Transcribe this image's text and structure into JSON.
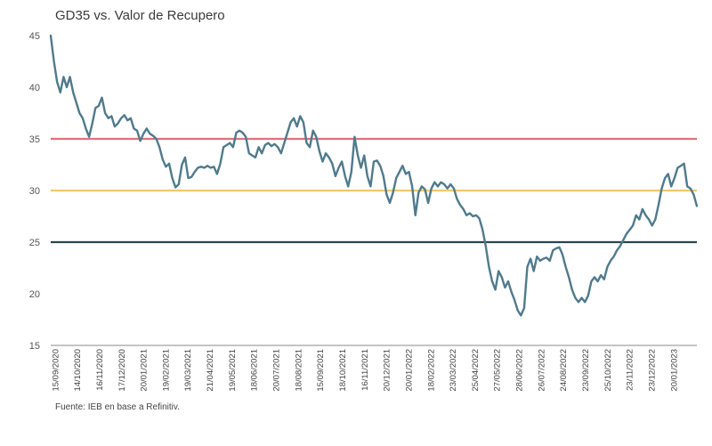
{
  "chart_data": {
    "type": "line",
    "title": "GD35 vs. Valor de Recupero",
    "xlabel": "",
    "ylabel": "",
    "ylim": [
      15,
      45
    ],
    "yticks": [
      15,
      20,
      25,
      30,
      35,
      40,
      45
    ],
    "x_tick_labels": [
      "15/09/2020",
      "14/10/2020",
      "16/11/2020",
      "17/12/2020",
      "20/01/2021",
      "19/02/2021",
      "19/03/2021",
      "21/04/2021",
      "19/05/2021",
      "18/06/2021",
      "20/07/2021",
      "18/08/2021",
      "15/09/2021",
      "18/10/2021",
      "16/11/2021",
      "20/12/2021",
      "20/01/2022",
      "18/02/2022",
      "23/03/2022",
      "25/04/2022",
      "27/05/2022",
      "28/06/2022",
      "26/07/2022",
      "24/08/2022",
      "23/09/2022",
      "25/10/2022",
      "23/11/2022",
      "23/12/2022",
      "20/01/2023"
    ],
    "series": [
      {
        "name": "GD35",
        "color": "#4f7a8c",
        "values": [
          45,
          42.5,
          40.5,
          39.5,
          41,
          40,
          41,
          39.5,
          38.5,
          37.5,
          37,
          36,
          35.2,
          36.5,
          38,
          38.2,
          39,
          37.5,
          37,
          37.2,
          36.2,
          36.5,
          37,
          37.3,
          36.8,
          37,
          36,
          35.8,
          34.8,
          35.5,
          36,
          35.5,
          35.3,
          35,
          34.2,
          33,
          32.3,
          32.6,
          31.2,
          30.3,
          30.6,
          32.5,
          33.2,
          31.2,
          31.3,
          31.8,
          32.2,
          32.3,
          32.2,
          32.4,
          32.2,
          32.3,
          31.6,
          32.6,
          34.2,
          34.4,
          34.6,
          34.2,
          35.6,
          35.8,
          35.6,
          35.2,
          33.6,
          33.4,
          33.2,
          34.2,
          33.6,
          34.4,
          34.6,
          34.3,
          34.5,
          34.2,
          33.6,
          34.6,
          35.6,
          36.6,
          37,
          36.2,
          37.2,
          36.6,
          34.6,
          34.2,
          35.8,
          35.2,
          33.8,
          32.8,
          33.6,
          33.2,
          32.6,
          31.4,
          32.2,
          32.8,
          31.4,
          30.4,
          31.8,
          35.2,
          33.4,
          32.2,
          33.4,
          31.4,
          30.4,
          32.8,
          32.9,
          32.4,
          31.4,
          29.6,
          28.8,
          29.8,
          31.2,
          31.8,
          32.4,
          31.6,
          31.8,
          30.4,
          27.6,
          29.8,
          30.4,
          30.1,
          28.8,
          30.2,
          30.8,
          30.4,
          30.8,
          30.6,
          30.2,
          30.6,
          30.2,
          29.2,
          28.6,
          28.2,
          27.6,
          27.8,
          27.5,
          27.6,
          27.3,
          26.2,
          24.6,
          22.6,
          21.2,
          20.4,
          22.2,
          21.6,
          20.6,
          21.2,
          20.2,
          19.4,
          18.4,
          17.9,
          18.6,
          22.6,
          23.4,
          22.2,
          23.6,
          23.2,
          23.4,
          23.5,
          23.2,
          24.2,
          24.4,
          24.5,
          23.8,
          22.6,
          21.6,
          20.4,
          19.6,
          19.2,
          19.6,
          19.2,
          19.8,
          21.2,
          21.6,
          21.2,
          21.8,
          21.4,
          22.6,
          23.2,
          23.6,
          24.2,
          24.6,
          25.2,
          25.8,
          26.2,
          26.6,
          27.6,
          27.2,
          28.2,
          27.6,
          27.2,
          26.6,
          27.2,
          28.6,
          30.2,
          31.2,
          31.6,
          30.4,
          31.2,
          32.2,
          32.4,
          32.6,
          30.4,
          30.2,
          29.6,
          28.5
        ]
      }
    ],
    "reference_lines": [
      {
        "name": "35",
        "value": 35,
        "color": "#e2717a"
      },
      {
        "name": "30",
        "value": 30,
        "color": "#f2c96a"
      },
      {
        "name": "25",
        "value": 25,
        "color": "#274650"
      }
    ],
    "grid": false,
    "legend": "none"
  },
  "source_note": "Fuente: IEB en base a Refinitiv."
}
